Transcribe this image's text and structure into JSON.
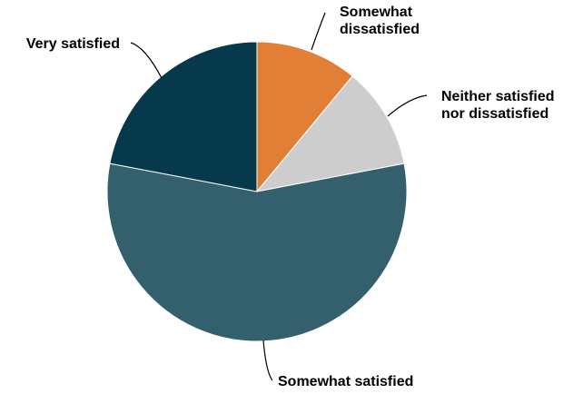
{
  "chart_data": {
    "type": "pie",
    "title": "",
    "slices": [
      {
        "label": [
          "Somewhat",
          "dissatisfied"
        ],
        "value": 11,
        "color": "#E07F35"
      },
      {
        "label": [
          "Neither satisfied",
          "nor dissatisfied"
        ],
        "value": 11,
        "color": "#CDCDCD"
      },
      {
        "label": [
          "Somewhat satisfied"
        ],
        "value": 56,
        "color": "#34606E"
      },
      {
        "label": [
          "Very satisfied"
        ],
        "value": 22,
        "color": "#05394B"
      }
    ],
    "start_angle_deg": 0,
    "direction": "clockwise",
    "legend": "none",
    "data_labels": "category names with leader lines"
  }
}
